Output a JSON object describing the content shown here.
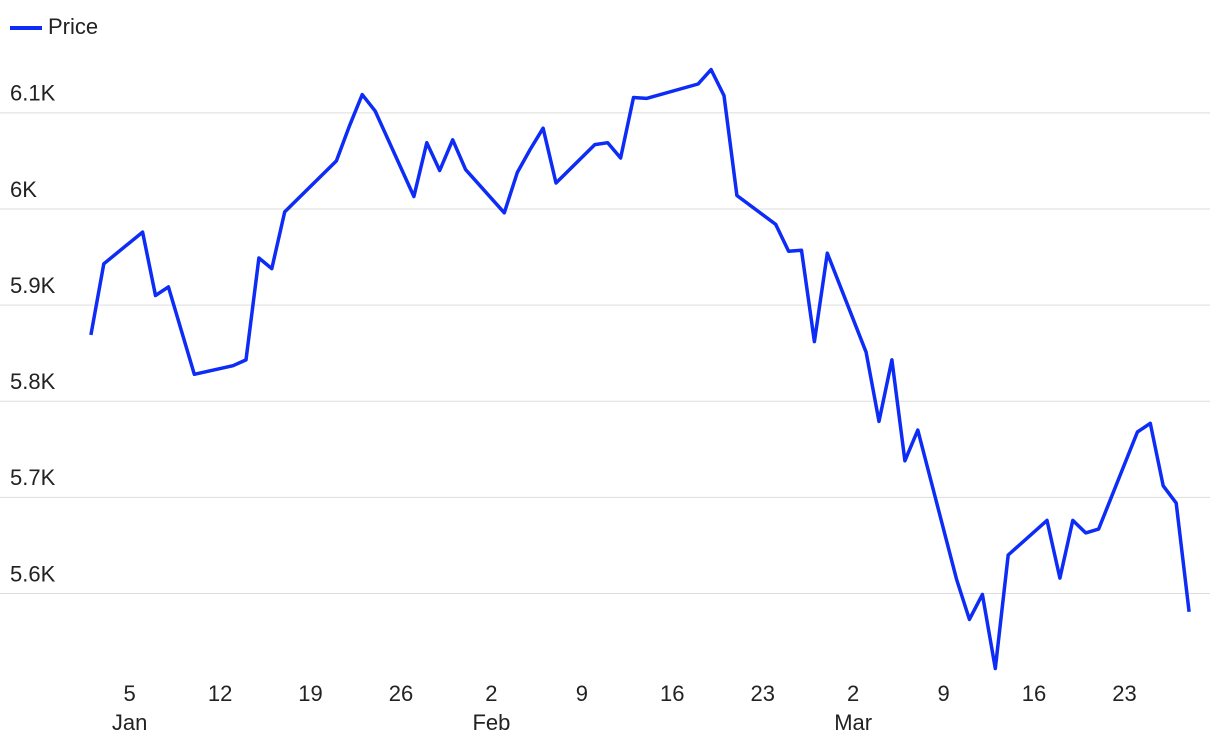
{
  "chart_data": {
    "type": "line",
    "x": [
      "Jan 2",
      "Jan 3",
      "Jan 6",
      "Jan 7",
      "Jan 8",
      "Jan 10",
      "Jan 13",
      "Jan 14",
      "Jan 15",
      "Jan 16",
      "Jan 17",
      "Jan 21",
      "Jan 22",
      "Jan 23",
      "Jan 24",
      "Jan 27",
      "Jan 28",
      "Jan 29",
      "Jan 30",
      "Jan 31",
      "Feb 3",
      "Feb 4",
      "Feb 5",
      "Feb 6",
      "Feb 7",
      "Feb 10",
      "Feb 11",
      "Feb 12",
      "Feb 13",
      "Feb 14",
      "Feb 18",
      "Feb 19",
      "Feb 20",
      "Feb 21",
      "Feb 24",
      "Feb 25",
      "Feb 26",
      "Feb 27",
      "Feb 28",
      "Mar 3",
      "Mar 4",
      "Mar 5",
      "Mar 6",
      "Mar 7",
      "Mar 10",
      "Mar 11",
      "Mar 12",
      "Mar 13",
      "Mar 14",
      "Mar 17",
      "Mar 18",
      "Mar 19",
      "Mar 20",
      "Mar 21",
      "Mar 24",
      "Mar 25",
      "Mar 26",
      "Mar 27",
      "Mar 28"
    ],
    "series": [
      {
        "name": "Price",
        "color": "#0d2cf5",
        "values": [
          5869,
          5943,
          5976,
          5910,
          5919,
          5828,
          5837,
          5843,
          5949,
          5938,
          5997,
          6050,
          6086,
          6119,
          6102,
          6013,
          6069,
          6040,
          6072,
          6041,
          5996,
          6038,
          6062,
          6084,
          6027,
          6067,
          6069,
          6053,
          6116,
          6115,
          6130,
          6145,
          6118,
          6014,
          5984,
          5956,
          5957,
          5862,
          5954,
          5851,
          5779,
          5843,
          5738,
          5770,
          5615,
          5573,
          5599,
          5522,
          5640,
          5676,
          5616,
          5676,
          5663,
          5667,
          5768,
          5777,
          5712,
          5694,
          5581
        ]
      }
    ],
    "xlim": [
      "Jan 1",
      "Mar 29"
    ],
    "xticks": [
      {
        "value": "Jan 5",
        "label": "5",
        "sublabel": "Jan"
      },
      {
        "value": "Jan 12",
        "label": "12"
      },
      {
        "value": "Jan 19",
        "label": "19"
      },
      {
        "value": "Jan 26",
        "label": "26"
      },
      {
        "value": "Feb 2",
        "label": "2",
        "sublabel": "Feb"
      },
      {
        "value": "Feb 9",
        "label": "9"
      },
      {
        "value": "Feb 16",
        "label": "16"
      },
      {
        "value": "Feb 23",
        "label": "23"
      },
      {
        "value": "Mar 2",
        "label": "2",
        "sublabel": "Mar"
      },
      {
        "value": "Mar 9",
        "label": "9"
      },
      {
        "value": "Mar 16",
        "label": "16"
      },
      {
        "value": "Mar 23",
        "label": "23"
      }
    ],
    "ylim": [
      5510,
      6155
    ],
    "yticks": [
      {
        "value": 5600,
        "label": "5.6K"
      },
      {
        "value": 5700,
        "label": "5.7K"
      },
      {
        "value": 5800,
        "label": "5.8K"
      },
      {
        "value": 5900,
        "label": "5.9K"
      },
      {
        "value": 6000,
        "label": "6K"
      },
      {
        "value": 6100,
        "label": "6.1K"
      }
    ],
    "grid": true,
    "legend": "top-left"
  }
}
